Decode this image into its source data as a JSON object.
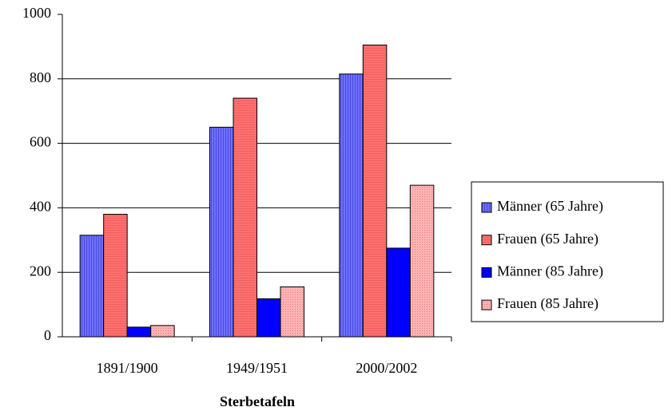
{
  "chart_data": {
    "type": "bar",
    "xlabel": "Sterbetafeln",
    "categories": [
      "1891/1900",
      "1949/1951",
      "2000/2002"
    ],
    "series": [
      {
        "name": "Männer (65 Jahre)",
        "color": "#6f6fff",
        "values": [
          315,
          650,
          815
        ]
      },
      {
        "name": "Frauen (65 Jahre)",
        "color": "#ff7070",
        "values": [
          380,
          740,
          905
        ]
      },
      {
        "name": "Männer (85 Jahre)",
        "color": "#0000ff",
        "values": [
          30,
          118,
          275
        ]
      },
      {
        "name": "Frauen (85 Jahre)",
        "color": "#ffb3b3",
        "values": [
          35,
          155,
          470
        ]
      }
    ],
    "ylim": [
      0,
      1000
    ],
    "yticks": [
      0,
      200,
      400,
      600,
      800,
      1000
    ],
    "grid": true,
    "legend": "right"
  }
}
